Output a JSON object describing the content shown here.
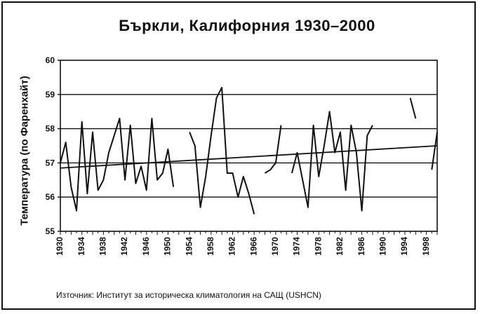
{
  "chart_data": {
    "type": "line",
    "title": "Бъркли, Калифорния 1930–2000",
    "ylabel": "Температура (по Фаренхайт)",
    "xlabel": "",
    "source": "Източник: Институт за историческа климатология на САЩ (USHCN)",
    "ylim": [
      55,
      60
    ],
    "xlim": [
      1930,
      2000
    ],
    "yticks": [
      55,
      56,
      57,
      58,
      59,
      60
    ],
    "xticks": [
      1930,
      1934,
      1938,
      1942,
      1946,
      1950,
      1954,
      1958,
      1962,
      1966,
      1970,
      1974,
      1978,
      1982,
      1986,
      1990,
      1994,
      1998
    ],
    "grid": "horizontal",
    "series": [
      {
        "segments": [
          [
            [
              1930,
              57.0
            ],
            [
              1931,
              57.6
            ],
            [
              1932,
              56.3
            ],
            [
              1933,
              55.6
            ],
            [
              1934,
              58.2
            ],
            [
              1935,
              56.1
            ],
            [
              1936,
              57.9
            ],
            [
              1937,
              56.2
            ],
            [
              1938,
              56.5
            ],
            [
              1939,
              57.3
            ],
            [
              1940,
              57.8
            ],
            [
              1941,
              58.3
            ],
            [
              1942,
              56.5
            ],
            [
              1943,
              58.1
            ],
            [
              1944,
              56.4
            ],
            [
              1945,
              56.9
            ],
            [
              1946,
              56.2
            ],
            [
              1947,
              58.3
            ],
            [
              1948,
              56.5
            ],
            [
              1949,
              56.7
            ],
            [
              1950,
              57.4
            ],
            [
              1951,
              56.3
            ]
          ],
          [
            [
              1954,
              57.9
            ],
            [
              1955,
              57.5
            ],
            [
              1956,
              55.7
            ],
            [
              1957,
              56.6
            ],
            [
              1958,
              57.8
            ],
            [
              1959,
              58.9
            ],
            [
              1960,
              59.2
            ],
            [
              1961,
              56.7
            ],
            [
              1962,
              56.7
            ],
            [
              1963,
              56.0
            ],
            [
              1964,
              56.6
            ],
            [
              1965,
              56.1
            ],
            [
              1966,
              55.5
            ]
          ],
          [
            [
              1968,
              56.7
            ],
            [
              1969,
              56.8
            ],
            [
              1970,
              57.0
            ],
            [
              1971,
              58.1
            ]
          ],
          [
            [
              1973,
              56.7
            ],
            [
              1974,
              57.3
            ],
            [
              1975,
              56.5
            ],
            [
              1976,
              55.7
            ],
            [
              1977,
              58.1
            ],
            [
              1978,
              56.6
            ],
            [
              1979,
              57.5
            ],
            [
              1980,
              58.5
            ],
            [
              1981,
              57.3
            ],
            [
              1982,
              57.9
            ],
            [
              1983,
              56.2
            ],
            [
              1984,
              58.1
            ],
            [
              1985,
              57.3
            ],
            [
              1986,
              55.6
            ],
            [
              1987,
              57.8
            ],
            [
              1988,
              58.1
            ]
          ],
          [
            [
              1995,
              58.9
            ],
            [
              1996,
              58.3
            ]
          ],
          [
            [
              1999,
              56.8
            ],
            [
              2000,
              57.9
            ]
          ]
        ]
      }
    ],
    "trendline": [
      [
        1930,
        56.85
      ],
      [
        2000,
        57.5
      ]
    ]
  }
}
